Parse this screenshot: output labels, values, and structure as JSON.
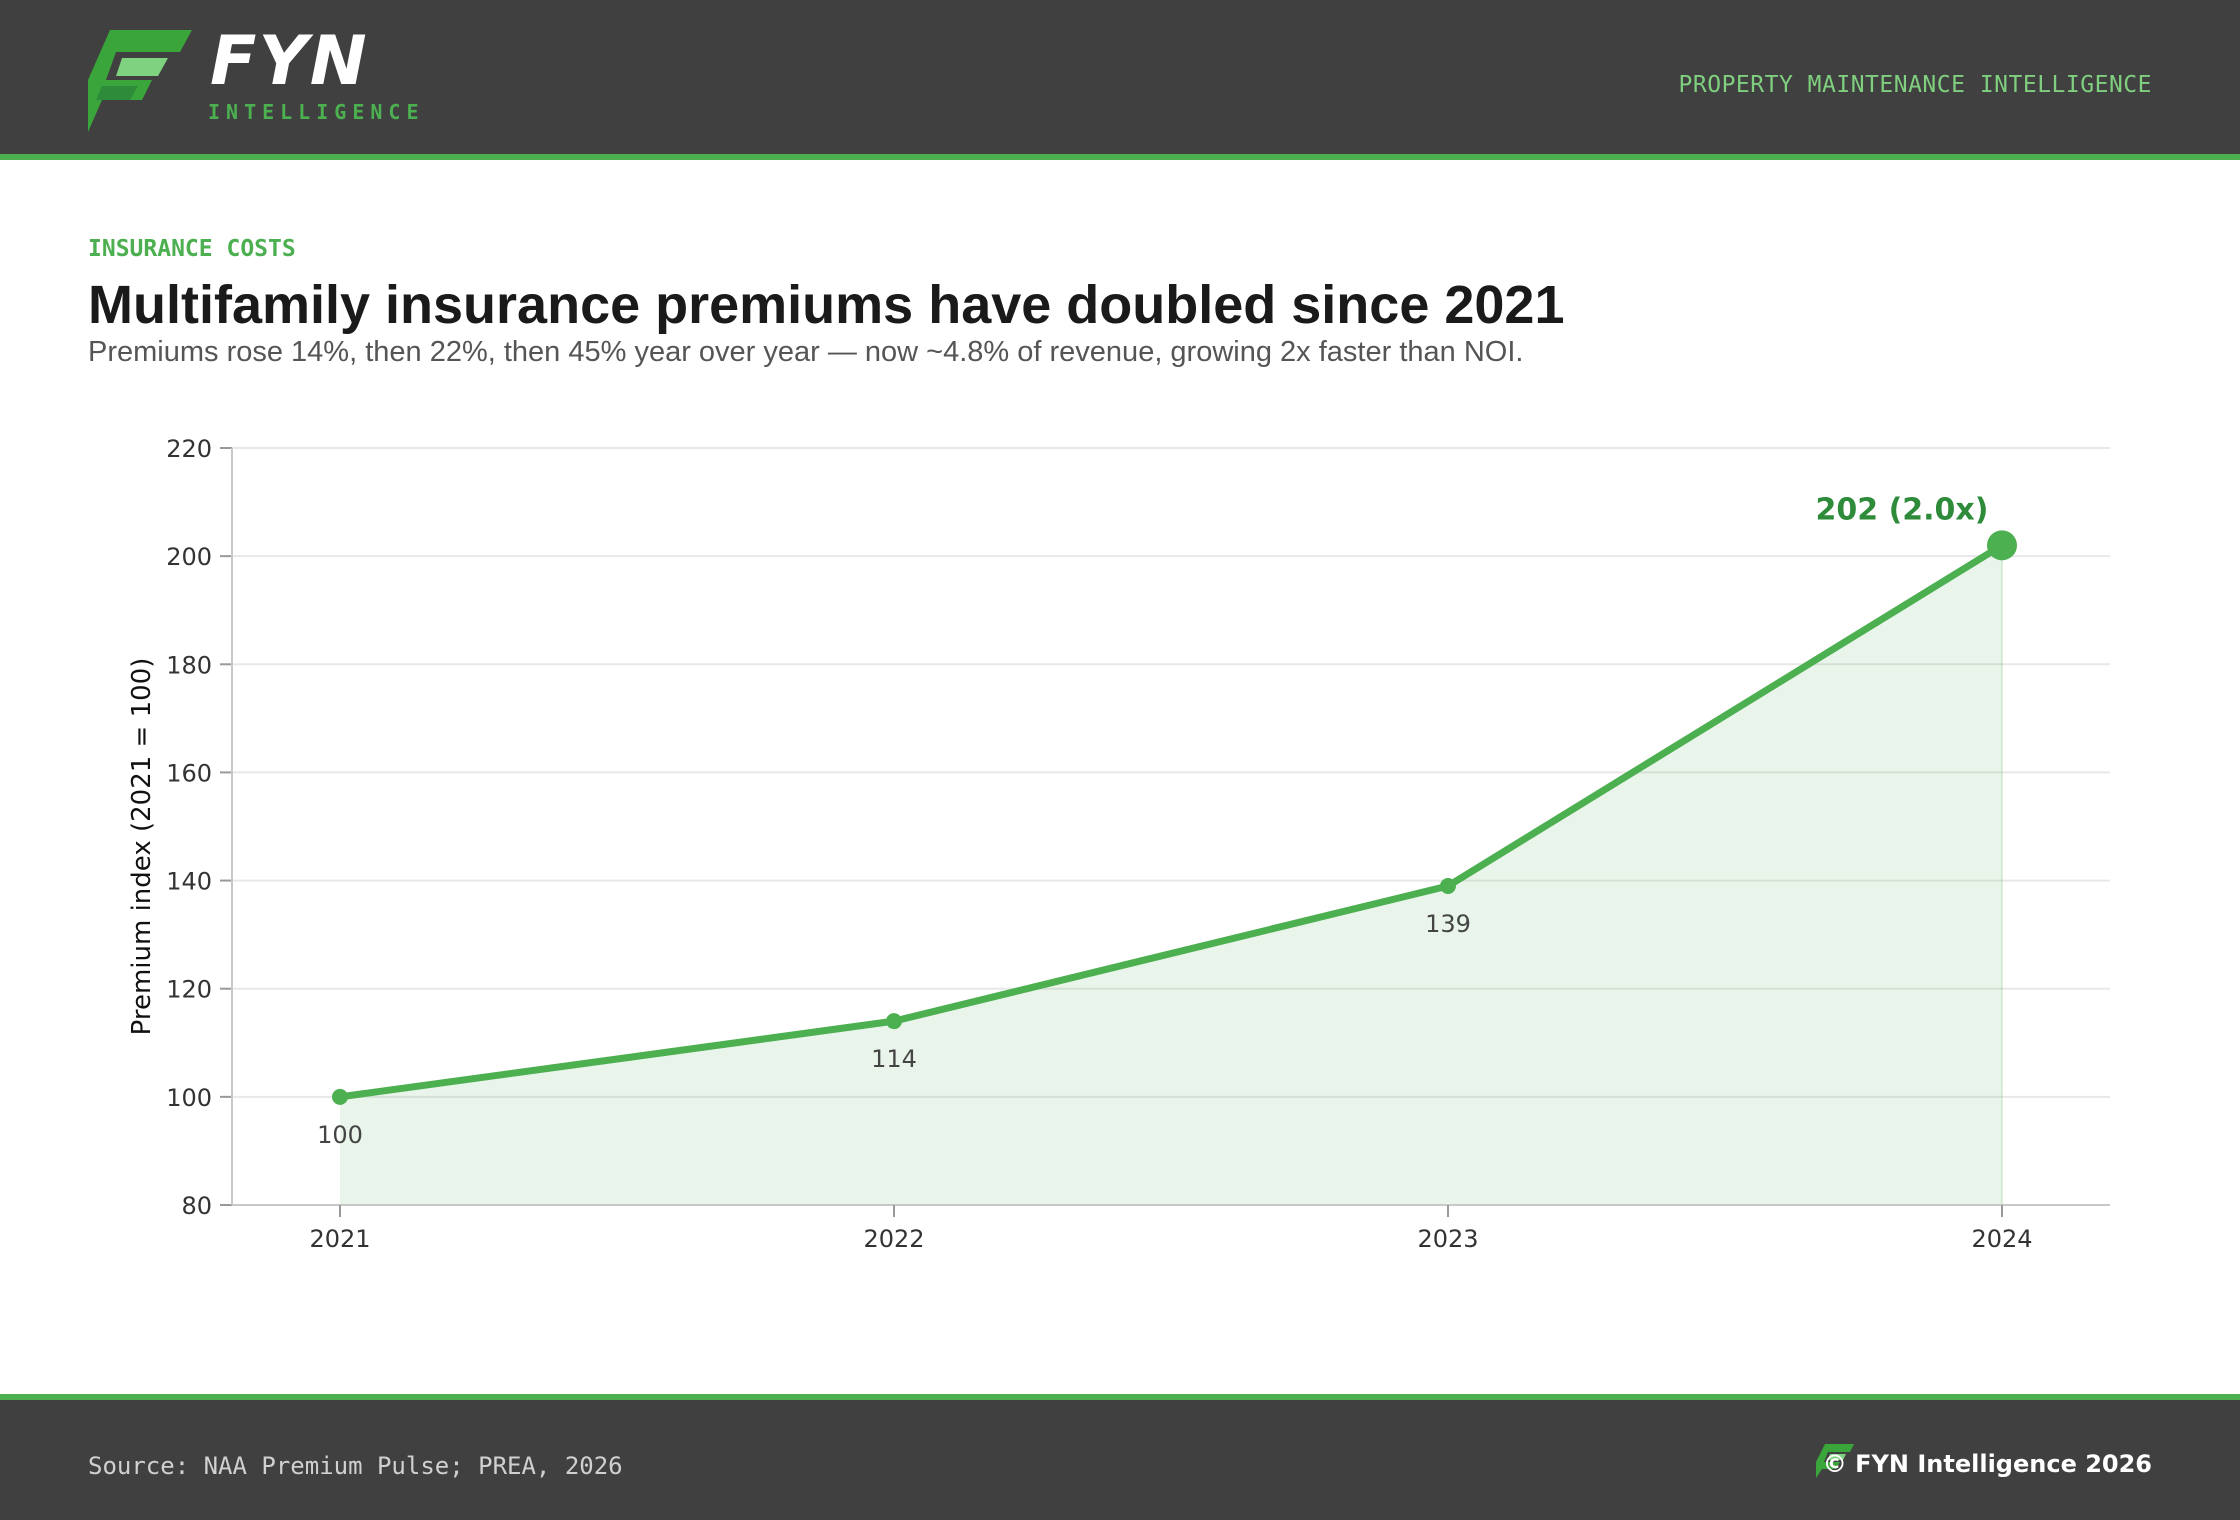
{
  "brand": {
    "name": "FYN",
    "sub": "INTELLIGENCE",
    "tagline": "PROPERTY MAINTENANCE INTELLIGENCE",
    "icon": "fyn-logo-icon",
    "accent": "#4caf50",
    "accent_dark": "#2e8b3a",
    "dark_bg": "#404040"
  },
  "eyebrow": "INSURANCE COSTS",
  "title": "Multifamily insurance premiums have doubled since 2021",
  "subtitle": "Premiums rose 14%, then 22%, then 45% year over year — now ~4.8% of revenue, growing 2x faster than NOI.",
  "chart_data": {
    "type": "area",
    "x": [
      "2021",
      "2022",
      "2023",
      "2024"
    ],
    "series": [
      {
        "values": [
          100,
          114,
          139,
          202
        ]
      }
    ],
    "data_labels": [
      "100",
      "114",
      "139",
      "202 (2.0x)"
    ],
    "title": "",
    "xlabel": "",
    "ylabel": "Premium index (2021 = 100)",
    "ylim": [
      80,
      220
    ],
    "yticks": [
      80,
      100,
      120,
      140,
      160,
      180,
      200,
      220
    ],
    "grid": true,
    "legend": "none"
  },
  "footer": {
    "source": "Source: NAA Premium Pulse; PREA, 2026",
    "copyright": "© FYN Intelligence 2026"
  }
}
